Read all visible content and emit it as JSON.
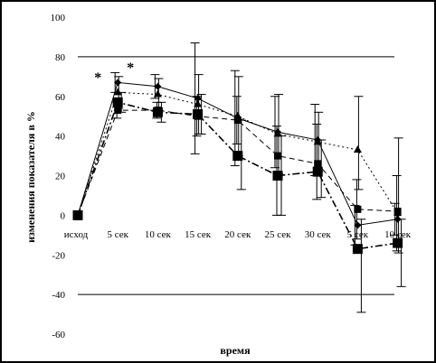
{
  "chart_data": {
    "type": "line",
    "title": "",
    "xlabel": "время",
    "ylabel": "изменения показателя в %",
    "ylim": [
      -60,
      100
    ],
    "yticks": [
      100,
      80,
      60,
      40,
      20,
      0,
      -20,
      -40,
      -60
    ],
    "categories": [
      "исход",
      "5 сек",
      "10 сек",
      "15 сек",
      "20 сек",
      "25 сек",
      "30 сек",
      "5 сек",
      "10 сек"
    ],
    "reference_lines": [
      80,
      -40
    ],
    "grid": false,
    "legend": "none",
    "series": [
      {
        "marker": "diamond",
        "line": "solid",
        "values": [
          0,
          67,
          65,
          59,
          49,
          42,
          38,
          -5,
          -2
        ],
        "err_hi": [
          0,
          5,
          6,
          28,
          24,
          18,
          18,
          10,
          8
        ],
        "err_lo": [
          0,
          5,
          6,
          28,
          24,
          18,
          18,
          10,
          8
        ]
      },
      {
        "marker": "triangle",
        "line": "dotted",
        "values": [
          0,
          62,
          61,
          56,
          50,
          41,
          37,
          33,
          1
        ],
        "err_hi": [
          0,
          8,
          8,
          15,
          20,
          20,
          15,
          27,
          38
        ],
        "err_lo": [
          0,
          8,
          8,
          15,
          20,
          20,
          15,
          20,
          20
        ]
      },
      {
        "marker": "square",
        "line": "dash-dot",
        "values": [
          0,
          57,
          52,
          51,
          30,
          20,
          22,
          -17,
          -14
        ],
        "err_hi": [
          0,
          5,
          5,
          10,
          18,
          20,
          16,
          15,
          12
        ],
        "err_lo": [
          0,
          5,
          5,
          10,
          17,
          20,
          13,
          32,
          22
        ]
      },
      {
        "marker": "square",
        "line": "dashed",
        "values": [
          0,
          53,
          53,
          50,
          48,
          30,
          26,
          3,
          2
        ],
        "err_hi": [
          0,
          4,
          4,
          10,
          12,
          15,
          20,
          15,
          18
        ],
        "err_lo": [
          0,
          4,
          4,
          10,
          12,
          30,
          18,
          15,
          20
        ]
      }
    ],
    "annotations": [
      {
        "text": "*",
        "x": "5 сек",
        "y": 70,
        "series_side": "left"
      },
      {
        "text": "*",
        "x": "5 сек",
        "y": 75,
        "series_side": "right"
      }
    ]
  }
}
